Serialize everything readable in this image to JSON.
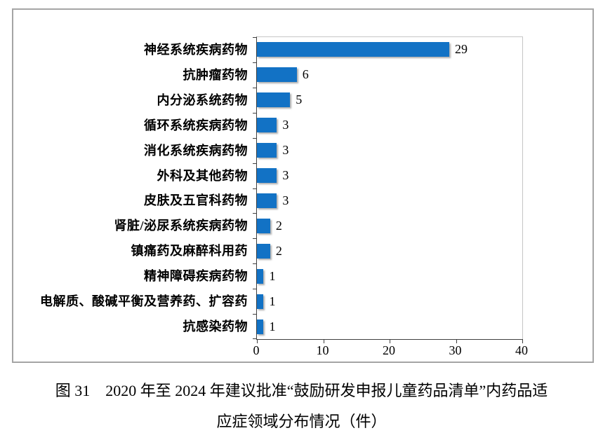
{
  "figure": {
    "caption_line1": "图 31　2020 年至 2024 年建议批准“鼓励研发申报儿童药品清单”内药品适",
    "caption_line2": "应症领域分布情况（件）"
  },
  "chart_data": {
    "type": "bar",
    "orientation": "horizontal",
    "title": "",
    "xlabel": "",
    "ylabel": "",
    "categories": [
      "神经系统疾病药物",
      "抗肿瘤药物",
      "内分泌系统药物",
      "循环系统疾病药物",
      "消化系统疾病药物",
      "外科及其他药物",
      "皮肤及五官科药物",
      "肾脏/泌尿系统疾病药物",
      "镇痛药及麻醉科用药",
      "精神障碍疾病药物",
      "电解质、酸碱平衡及营养药、扩容药",
      "抗感染药物"
    ],
    "values": [
      29,
      6,
      5,
      3,
      3,
      3,
      3,
      2,
      2,
      1,
      1,
      1
    ],
    "data_labels": [
      29,
      6,
      5,
      3,
      3,
      3,
      3,
      2,
      2,
      1,
      1,
      1
    ],
    "xticks": [
      0,
      10,
      20,
      30,
      40
    ],
    "xlim": [
      0,
      40
    ],
    "grid": false,
    "legend": null,
    "bar_color": "#1272c5",
    "axis_color": "#3f3f3f",
    "plot_border_color": "#c6c6c6",
    "frame_border_color": "#a5a5a5",
    "text_color": "#000000"
  }
}
